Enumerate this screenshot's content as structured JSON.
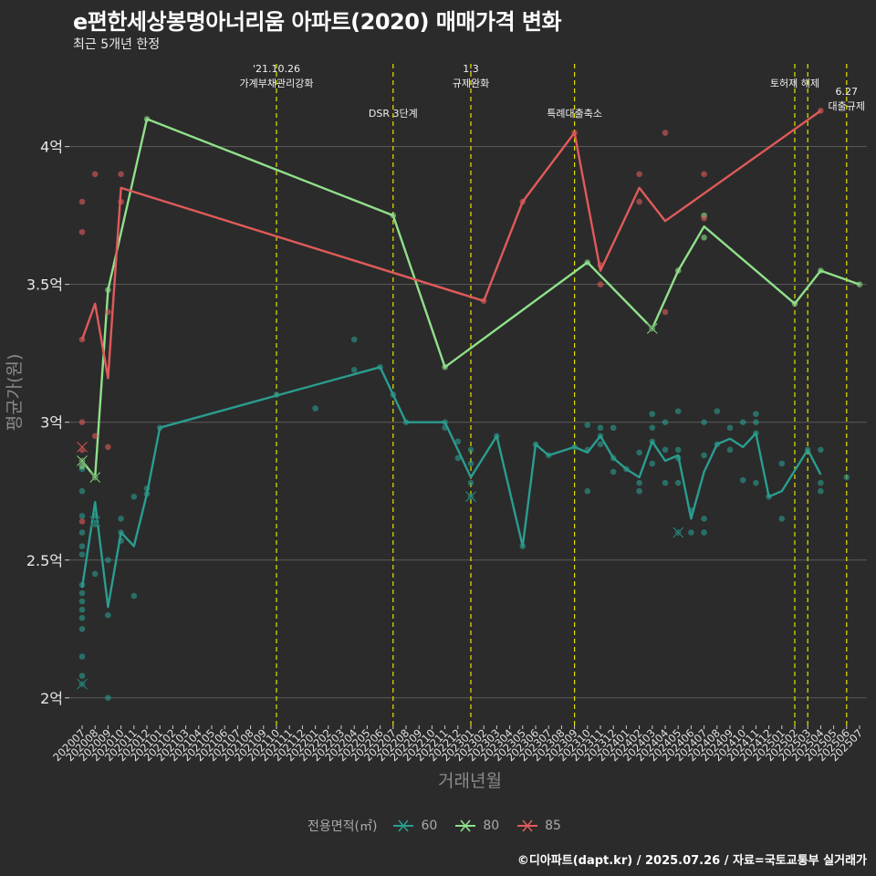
{
  "title": "e편한세상봉명아너리움 아파트(2020) 매매가격 변화",
  "subtitle": "최근 5개년 한정",
  "caption": "©디아파트(dapt.kr) / 2025.07.26 / 자료=국토교통부 실거래가",
  "colors": {
    "background": "#2b2b2b",
    "grid": "#5a5a5a",
    "event_line": "#e5e500",
    "s60": "#2a9d8f",
    "s80": "#90e08a",
    "s85": "#e05a5a"
  },
  "chart_data": {
    "type": "line",
    "xlabel": "거래년월",
    "ylabel": "평균가(원)",
    "x_categories": [
      "202007",
      "202008",
      "202009",
      "202010",
      "202011",
      "202012",
      "202101",
      "202102",
      "202103",
      "202104",
      "202105",
      "202106",
      "202107",
      "202108",
      "202109",
      "202110",
      "202111",
      "202112",
      "202201",
      "202202",
      "202203",
      "202204",
      "202205",
      "202206",
      "202207",
      "202208",
      "202209",
      "202210",
      "202211",
      "202212",
      "202301",
      "202302",
      "202303",
      "202304",
      "202305",
      "202306",
      "202307",
      "202308",
      "202309",
      "202310",
      "202311",
      "202312",
      "202401",
      "202402",
      "202403",
      "202404",
      "202405",
      "202406",
      "202407",
      "202408",
      "202409",
      "202410",
      "202411",
      "202412",
      "202501",
      "202502",
      "202503",
      "202504",
      "202505",
      "202506",
      "202507"
    ],
    "y_ticks": [
      {
        "value": 2.0,
        "label": "2억"
      },
      {
        "value": 2.5,
        "label": "2.5억"
      },
      {
        "value": 3.0,
        "label": "3억"
      },
      {
        "value": 3.5,
        "label": "3.5억"
      },
      {
        "value": 4.0,
        "label": "4억"
      }
    ],
    "ylim": [
      1.9,
      4.3
    ],
    "grid": "horizontal",
    "legend": {
      "title": "전용면적(㎡)",
      "position": "bottom"
    },
    "events": [
      {
        "x": "202110",
        "label": "'21.10.26\n가계부채관리강화",
        "row": 1
      },
      {
        "x": "202207",
        "label": "DSR 3단계",
        "row": 2
      },
      {
        "x": "202301",
        "label": "1.3\n규제완화",
        "row": 1
      },
      {
        "x": "202309",
        "label": "특례대출축소",
        "row": 2
      },
      {
        "x": "202502",
        "label": "토허제 해제",
        "row": 1
      },
      {
        "x": "202503",
        "label": "",
        "row": 1
      },
      {
        "x": "202506",
        "label": "6.27\n대출규제",
        "row": 3
      }
    ],
    "series": [
      {
        "name": "60",
        "color_key": "s60",
        "line": [
          [
            "202007",
            2.4
          ],
          [
            "202008",
            2.71
          ],
          [
            "202009",
            2.33
          ],
          [
            "202010",
            2.6
          ],
          [
            "202011",
            2.55
          ],
          [
            "202012",
            2.74
          ],
          [
            "202101",
            2.98
          ],
          [
            "202206",
            3.2
          ],
          [
            "202207",
            3.1
          ],
          [
            "202208",
            3.0
          ],
          [
            "202211",
            3.0
          ],
          [
            "202212",
            2.9
          ],
          [
            "202301",
            2.8
          ],
          [
            "202303",
            2.95
          ],
          [
            "202305",
            2.55
          ],
          [
            "202306",
            2.92
          ],
          [
            "202307",
            2.88
          ],
          [
            "202309",
            2.91
          ],
          [
            "202310",
            2.89
          ],
          [
            "202311",
            2.95
          ],
          [
            "202312",
            2.87
          ],
          [
            "202401",
            2.83
          ],
          [
            "202402",
            2.8
          ],
          [
            "202403",
            2.93
          ],
          [
            "202404",
            2.86
          ],
          [
            "202405",
            2.88
          ],
          [
            "202406",
            2.65
          ],
          [
            "202407",
            2.82
          ],
          [
            "202408",
            2.92
          ],
          [
            "202409",
            2.94
          ],
          [
            "202410",
            2.91
          ],
          [
            "202411",
            2.96
          ],
          [
            "202412",
            2.73
          ],
          [
            "202501",
            2.75
          ],
          [
            "202503",
            2.9
          ],
          [
            "202504",
            2.81
          ]
        ],
        "points": [
          [
            "202007",
            2.05
          ],
          [
            "202007",
            2.08
          ],
          [
            "202007",
            2.15
          ],
          [
            "202007",
            2.25
          ],
          [
            "202007",
            2.29
          ],
          [
            "202007",
            2.32
          ],
          [
            "202007",
            2.35
          ],
          [
            "202007",
            2.38
          ],
          [
            "202007",
            2.41
          ],
          [
            "202007",
            2.52
          ],
          [
            "202007",
            2.55
          ],
          [
            "202007",
            2.6
          ],
          [
            "202007",
            2.66
          ],
          [
            "202007",
            2.75
          ],
          [
            "202007",
            2.83
          ],
          [
            "202008",
            2.45
          ],
          [
            "202008",
            2.63
          ],
          [
            "202008",
            2.66
          ],
          [
            "202009",
            2.0
          ],
          [
            "202009",
            2.3
          ],
          [
            "202009",
            2.5
          ],
          [
            "202010",
            2.57
          ],
          [
            "202010",
            2.6
          ],
          [
            "202010",
            2.65
          ],
          [
            "202011",
            2.37
          ],
          [
            "202011",
            2.73
          ],
          [
            "202012",
            2.74
          ],
          [
            "202012",
            2.76
          ],
          [
            "202101",
            2.98
          ],
          [
            "202110",
            3.1
          ],
          [
            "202201",
            3.05
          ],
          [
            "202204",
            3.19
          ],
          [
            "202204",
            3.3
          ],
          [
            "202206",
            3.2
          ],
          [
            "202207",
            3.1
          ],
          [
            "202208",
            3.0
          ],
          [
            "202211",
            2.98
          ],
          [
            "202211",
            3.0
          ],
          [
            "202212",
            2.87
          ],
          [
            "202212",
            2.93
          ],
          [
            "202301",
            2.73
          ],
          [
            "202301",
            2.78
          ],
          [
            "202301",
            2.85
          ],
          [
            "202301",
            2.9
          ],
          [
            "202303",
            2.95
          ],
          [
            "202305",
            2.55
          ],
          [
            "202306",
            2.92
          ],
          [
            "202307",
            2.88
          ],
          [
            "202309",
            2.91
          ],
          [
            "202310",
            2.75
          ],
          [
            "202310",
            2.9
          ],
          [
            "202310",
            2.99
          ],
          [
            "202311",
            2.92
          ],
          [
            "202311",
            2.95
          ],
          [
            "202311",
            2.98
          ],
          [
            "202312",
            2.82
          ],
          [
            "202312",
            2.87
          ],
          [
            "202312",
            2.98
          ],
          [
            "202401",
            2.83
          ],
          [
            "202402",
            2.75
          ],
          [
            "202402",
            2.78
          ],
          [
            "202402",
            2.89
          ],
          [
            "202403",
            2.85
          ],
          [
            "202403",
            2.93
          ],
          [
            "202403",
            2.98
          ],
          [
            "202403",
            3.03
          ],
          [
            "202404",
            2.78
          ],
          [
            "202404",
            2.9
          ],
          [
            "202404",
            3.0
          ],
          [
            "202405",
            2.6
          ],
          [
            "202405",
            2.78
          ],
          [
            "202405",
            2.87
          ],
          [
            "202405",
            2.9
          ],
          [
            "202405",
            3.04
          ],
          [
            "202406",
            2.6
          ],
          [
            "202406",
            2.68
          ],
          [
            "202407",
            2.6
          ],
          [
            "202407",
            2.65
          ],
          [
            "202407",
            2.88
          ],
          [
            "202407",
            3.0
          ],
          [
            "202408",
            2.92
          ],
          [
            "202408",
            3.04
          ],
          [
            "202409",
            2.9
          ],
          [
            "202409",
            2.98
          ],
          [
            "202410",
            2.79
          ],
          [
            "202410",
            3.0
          ],
          [
            "202411",
            2.78
          ],
          [
            "202411",
            2.96
          ],
          [
            "202411",
            3.0
          ],
          [
            "202411",
            3.03
          ],
          [
            "202412",
            2.73
          ],
          [
            "202501",
            2.65
          ],
          [
            "202501",
            2.85
          ],
          [
            "202503",
            2.9
          ],
          [
            "202504",
            2.75
          ],
          [
            "202504",
            2.78
          ],
          [
            "202504",
            2.9
          ],
          [
            "202506",
            2.8
          ]
        ],
        "markers_x": [
          [
            "202007",
            2.05
          ],
          [
            "202008",
            2.64
          ],
          [
            "202301",
            2.73
          ],
          [
            "202405",
            2.6
          ]
        ]
      },
      {
        "name": "80",
        "color_key": "s80",
        "line": [
          [
            "202007",
            2.86
          ],
          [
            "202008",
            2.8
          ],
          [
            "202009",
            3.48
          ],
          [
            "202012",
            4.1
          ],
          [
            "202207",
            3.75
          ],
          [
            "202211",
            3.2
          ],
          [
            "202310",
            3.58
          ],
          [
            "202403",
            3.34
          ],
          [
            "202405",
            3.55
          ],
          [
            "202407",
            3.71
          ],
          [
            "202502",
            3.43
          ],
          [
            "202504",
            3.55
          ],
          [
            "202507",
            3.5
          ]
        ],
        "points": [
          [
            "202007",
            2.84
          ],
          [
            "202007",
            2.86
          ],
          [
            "202008",
            2.8
          ],
          [
            "202009",
            3.48
          ],
          [
            "202012",
            4.1
          ],
          [
            "202207",
            3.75
          ],
          [
            "202211",
            3.2
          ],
          [
            "202310",
            3.58
          ],
          [
            "202403",
            3.34
          ],
          [
            "202405",
            3.55
          ],
          [
            "202407",
            3.67
          ],
          [
            "202407",
            3.75
          ],
          [
            "202502",
            3.43
          ],
          [
            "202504",
            3.55
          ],
          [
            "202507",
            3.5
          ]
        ],
        "markers_x": [
          [
            "202007",
            2.86
          ],
          [
            "202008",
            2.8
          ],
          [
            "202403",
            3.34
          ]
        ]
      },
      {
        "name": "85",
        "color_key": "s85",
        "line": [
          [
            "202007",
            3.3
          ],
          [
            "202008",
            3.43
          ],
          [
            "202009",
            3.16
          ],
          [
            "202010",
            3.85
          ],
          [
            "202302",
            3.44
          ],
          [
            "202305",
            3.8
          ],
          [
            "202309",
            4.05
          ],
          [
            "202311",
            3.55
          ],
          [
            "202402",
            3.85
          ],
          [
            "202404",
            3.73
          ],
          [
            "202504",
            4.13
          ]
        ],
        "points": [
          [
            "202007",
            2.64
          ],
          [
            "202007",
            2.9
          ],
          [
            "202007",
            3.0
          ],
          [
            "202007",
            3.3
          ],
          [
            "202007",
            3.69
          ],
          [
            "202007",
            3.8
          ],
          [
            "202008",
            2.95
          ],
          [
            "202008",
            3.9
          ],
          [
            "202009",
            2.91
          ],
          [
            "202009",
            3.4
          ],
          [
            "202010",
            3.8
          ],
          [
            "202010",
            3.9
          ],
          [
            "202302",
            3.44
          ],
          [
            "202305",
            3.8
          ],
          [
            "202309",
            4.05
          ],
          [
            "202311",
            3.5
          ],
          [
            "202311",
            3.57
          ],
          [
            "202402",
            3.8
          ],
          [
            "202402",
            3.9
          ],
          [
            "202404",
            3.4
          ],
          [
            "202404",
            4.05
          ],
          [
            "202407",
            3.74
          ],
          [
            "202407",
            3.9
          ],
          [
            "202504",
            4.13
          ]
        ],
        "markers_x": [
          [
            "202007",
            2.91
          ]
        ]
      }
    ]
  }
}
